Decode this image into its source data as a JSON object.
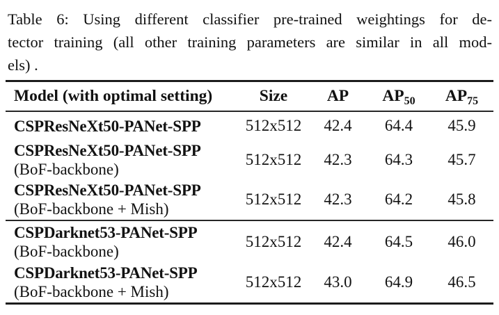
{
  "caption": {
    "line1": "Table 6: Using different classifier pre-trained weightings for de-",
    "line2": "tector training (all other training parameters are similar in all mod-",
    "line3": "els) ."
  },
  "table": {
    "header": {
      "model": "Model (with optimal setting)",
      "size": "Size",
      "ap": "AP",
      "ap50": {
        "base": "AP",
        "sub": "50"
      },
      "ap75": {
        "base": "AP",
        "sub": "75"
      }
    },
    "groups": [
      {
        "rows": [
          {
            "model": "CSPResNeXt50-PANet-SPP",
            "variant": "",
            "size": "512x512",
            "ap": "42.4",
            "ap50": "64.4",
            "ap75": "45.9"
          },
          {
            "model": "CSPResNeXt50-PANet-SPP",
            "variant": "(BoF-backbone)",
            "size": "512x512",
            "ap": "42.3",
            "ap50": "64.3",
            "ap75": "45.7"
          },
          {
            "model": "CSPResNeXt50-PANet-SPP",
            "variant": "(BoF-backbone + Mish)",
            "size": "512x512",
            "ap": "42.3",
            "ap50": "64.2",
            "ap75": "45.8"
          }
        ]
      },
      {
        "rows": [
          {
            "model": "CSPDarknet53-PANet-SPP",
            "variant": "(BoF-backbone)",
            "size": "512x512",
            "ap": "42.4",
            "ap50": "64.5",
            "ap75": "46.0"
          },
          {
            "model": "CSPDarknet53-PANet-SPP",
            "variant": "(BoF-backbone + Mish)",
            "size": "512x512",
            "ap": "43.0",
            "ap50": "64.9",
            "ap75": "46.5"
          }
        ]
      }
    ]
  },
  "colors": {
    "background": "#ffffff",
    "text": "#121212",
    "rule": "#1c1c1c"
  }
}
